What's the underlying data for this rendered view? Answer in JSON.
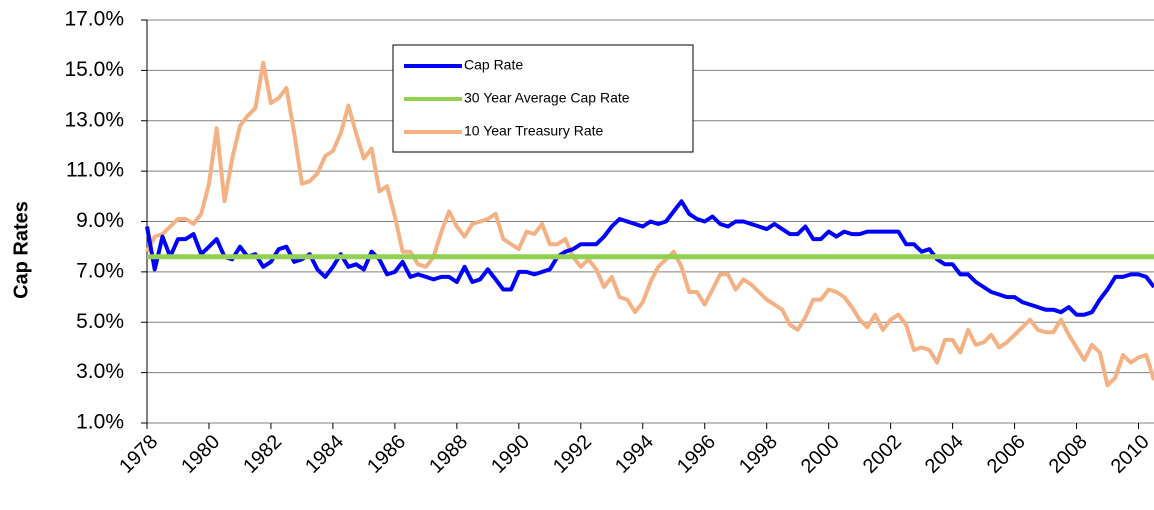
{
  "chart_data": {
    "type": "line",
    "y_label": "Cap Rates",
    "x": [
      1978,
      1978.25,
      1978.5,
      1978.75,
      1979,
      1979.25,
      1979.5,
      1979.75,
      1980,
      1980.25,
      1980.5,
      1980.75,
      1981,
      1981.25,
      1981.5,
      1981.75,
      1982,
      1982.25,
      1982.5,
      1982.75,
      1983,
      1983.25,
      1983.5,
      1983.75,
      1984,
      1984.25,
      1984.5,
      1984.75,
      1985,
      1985.25,
      1985.5,
      1985.75,
      1986,
      1986.25,
      1986.5,
      1986.75,
      1987,
      1987.25,
      1987.5,
      1987.75,
      1988,
      1988.25,
      1988.5,
      1988.75,
      1989,
      1989.25,
      1989.5,
      1989.75,
      1990,
      1990.25,
      1990.5,
      1990.75,
      1991,
      1991.25,
      1991.5,
      1991.75,
      1992,
      1992.25,
      1992.5,
      1992.75,
      1993,
      1993.25,
      1993.5,
      1993.75,
      1994,
      1994.25,
      1994.5,
      1994.75,
      1995,
      1995.25,
      1995.5,
      1995.75,
      1996,
      1996.25,
      1996.5,
      1996.75,
      1997,
      1997.25,
      1997.5,
      1997.75,
      1998,
      1998.25,
      1998.5,
      1998.75,
      1999,
      1999.25,
      1999.5,
      1999.75,
      2000,
      2000.25,
      2000.5,
      2000.75,
      2001,
      2001.25,
      2001.5,
      2001.75,
      2002,
      2002.25,
      2002.5,
      2002.75,
      2003,
      2003.25,
      2003.5,
      2003.75,
      2004,
      2004.25,
      2004.5,
      2004.75,
      2005,
      2005.25,
      2005.5,
      2005.75,
      2006,
      2006.25,
      2006.5,
      2006.75,
      2007,
      2007.25,
      2007.5,
      2007.75,
      2008,
      2008.25,
      2008.5,
      2008.75,
      2009,
      2009.25,
      2009.5,
      2009.75,
      2010,
      2010.25,
      2010.5
    ],
    "series": [
      {
        "name": "Cap Rate",
        "color": "#0000ff",
        "values": [
          8.8,
          7.1,
          8.4,
          7.6,
          8.3,
          8.3,
          8.5,
          7.7,
          8.0,
          8.3,
          7.6,
          7.5,
          8.0,
          7.6,
          7.7,
          7.2,
          7.4,
          7.9,
          8.0,
          7.4,
          7.5,
          7.7,
          7.1,
          6.8,
          7.2,
          7.7,
          7.2,
          7.3,
          7.1,
          7.8,
          7.5,
          6.9,
          7.0,
          7.4,
          6.8,
          6.9,
          6.8,
          6.7,
          6.8,
          6.8,
          6.6,
          7.2,
          6.6,
          6.7,
          7.1,
          6.7,
          6.3,
          6.3,
          7.0,
          7.0,
          6.9,
          7.0,
          7.1,
          7.6,
          7.8,
          7.9,
          8.1,
          8.1,
          8.1,
          8.4,
          8.8,
          9.1,
          9.0,
          8.9,
          8.8,
          9.0,
          8.9,
          9.0,
          9.4,
          9.8,
          9.3,
          9.1,
          9.0,
          9.2,
          8.9,
          8.8,
          9.0,
          9.0,
          8.9,
          8.8,
          8.7,
          8.9,
          8.7,
          8.5,
          8.5,
          8.8,
          8.3,
          8.3,
          8.6,
          8.4,
          8.6,
          8.5,
          8.5,
          8.6,
          8.6,
          8.6,
          8.6,
          8.6,
          8.1,
          8.1,
          7.8,
          7.9,
          7.5,
          7.3,
          7.3,
          6.9,
          6.9,
          6.6,
          6.4,
          6.2,
          6.1,
          6.0,
          6.0,
          5.8,
          5.7,
          5.6,
          5.5,
          5.5,
          5.4,
          5.6,
          5.3,
          5.3,
          5.4,
          5.9,
          6.3,
          6.8,
          6.8,
          6.9,
          6.9,
          6.8,
          6.4
        ]
      },
      {
        "name": "30 Year Average Cap Rate",
        "color": "#92d050",
        "x": [
          1978,
          2010.5
        ],
        "values": [
          7.6,
          7.6
        ]
      },
      {
        "name": "10 Year Treasury Rate",
        "color": "#f4b183",
        "values": [
          7.8,
          8.4,
          8.5,
          8.8,
          9.1,
          9.1,
          8.9,
          9.3,
          10.5,
          12.7,
          9.8,
          11.5,
          12.8,
          13.2,
          13.5,
          15.3,
          13.7,
          13.9,
          14.3,
          12.5,
          10.5,
          10.6,
          10.9,
          11.6,
          11.8,
          12.5,
          13.6,
          12.5,
          11.5,
          11.9,
          10.2,
          10.4,
          9.2,
          7.8,
          7.8,
          7.3,
          7.2,
          7.6,
          8.6,
          9.4,
          8.8,
          8.4,
          8.9,
          9.0,
          9.1,
          9.3,
          8.3,
          8.1,
          7.9,
          8.6,
          8.5,
          8.9,
          8.1,
          8.1,
          8.3,
          7.6,
          7.2,
          7.5,
          7.1,
          6.4,
          6.8,
          6.0,
          5.9,
          5.4,
          5.8,
          6.6,
          7.2,
          7.5,
          7.8,
          7.2,
          6.2,
          6.2,
          5.7,
          6.3,
          6.9,
          6.9,
          6.3,
          6.7,
          6.5,
          6.2,
          5.9,
          5.7,
          5.5,
          4.9,
          4.7,
          5.2,
          5.9,
          5.9,
          6.3,
          6.2,
          6.0,
          5.6,
          5.1,
          4.8,
          5.3,
          4.7,
          5.1,
          5.3,
          4.9,
          3.9,
          4.0,
          3.9,
          3.4,
          4.3,
          4.3,
          3.8,
          4.7,
          4.1,
          4.2,
          4.5,
          4.0,
          4.2,
          4.5,
          4.8,
          5.1,
          4.7,
          4.6,
          4.6,
          5.1,
          4.5,
          4.0,
          3.5,
          4.1,
          3.8,
          2.5,
          2.8,
          3.7,
          3.4,
          3.6,
          3.7,
          2.7
        ]
      }
    ],
    "xlim": [
      1978,
      2010.5
    ],
    "xticks": [
      1978,
      1980,
      1982,
      1984,
      1986,
      1988,
      1990,
      1992,
      1994,
      1996,
      1998,
      2000,
      2002,
      2004,
      2006,
      2008,
      2010
    ],
    "ylim": [
      1,
      17
    ],
    "yticks": [
      {
        "value": 1,
        "label": "1.0%"
      },
      {
        "value": 3,
        "label": "3.0%"
      },
      {
        "value": 5,
        "label": "5.0%"
      },
      {
        "value": 7,
        "label": "7.0%"
      },
      {
        "value": 9,
        "label": "9.0%"
      },
      {
        "value": 11,
        "label": "11.0%"
      },
      {
        "value": 13,
        "label": "13.0%"
      },
      {
        "value": 15,
        "label": "15.0%"
      },
      {
        "value": 17,
        "label": "17.0%"
      }
    ],
    "grid": true,
    "legend": "top"
  }
}
